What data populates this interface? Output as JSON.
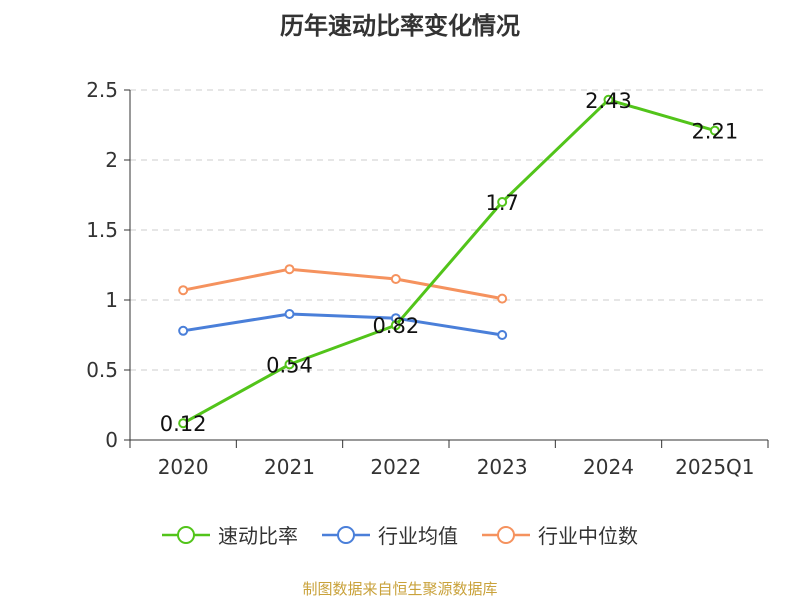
{
  "chart_data": {
    "type": "line",
    "title": "历年速动比率变化情况",
    "categories": [
      "2020",
      "2021",
      "2022",
      "2023",
      "2024",
      "2025Q1"
    ],
    "ylim": [
      0,
      2.5
    ],
    "yticks": [
      "0",
      "0.5",
      "1",
      "1.5",
      "2",
      "2.5"
    ],
    "grid": true,
    "legend_position": "bottom",
    "series": [
      {
        "name": "速动比率",
        "color": "#52c41a",
        "values": [
          0.12,
          0.54,
          0.82,
          1.7,
          2.43,
          2.21
        ],
        "labels": [
          "0.12",
          "0.54",
          "0.82",
          "1.7",
          "2.43",
          "2.21"
        ]
      },
      {
        "name": "行业均值",
        "color": "#4a7fd9",
        "values": [
          0.78,
          0.9,
          0.87,
          0.75,
          null,
          null
        ]
      },
      {
        "name": "行业中位数",
        "color": "#f5925e",
        "values": [
          1.07,
          1.22,
          1.15,
          1.01,
          null,
          null
        ]
      }
    ]
  },
  "footer": {
    "source": "制图数据来自恒生聚源数据库"
  }
}
